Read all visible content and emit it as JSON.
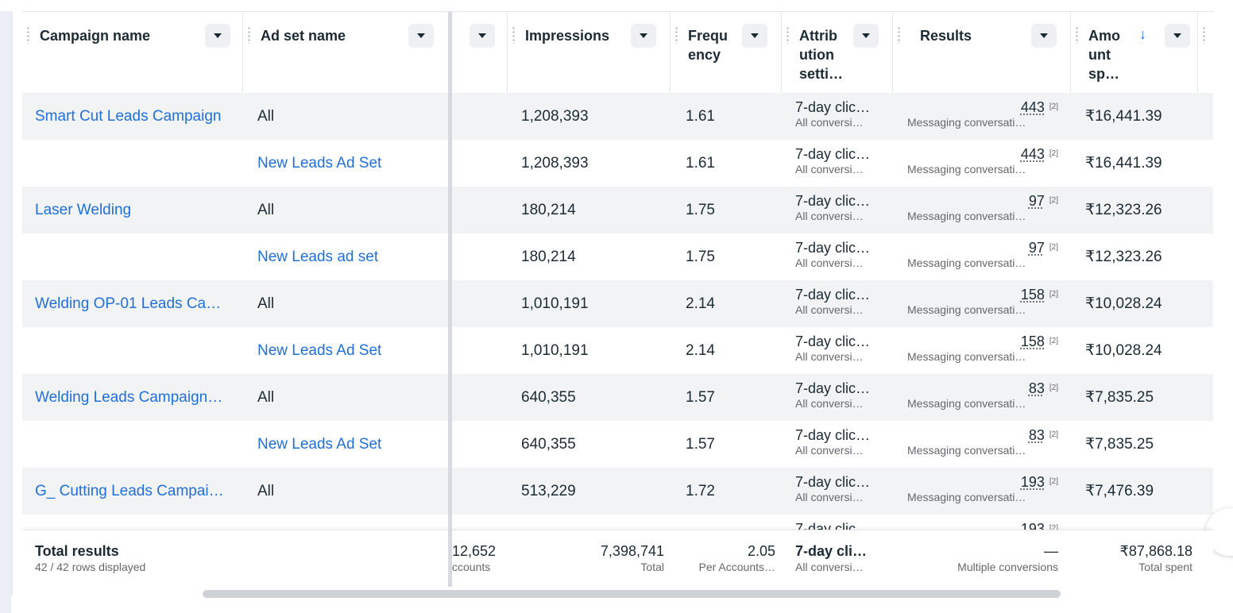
{
  "columns": {
    "campaign_name": "Campaign name",
    "ad_set_name": "Ad set name",
    "impressions": "Impressions",
    "frequency": [
      "Frequ",
      "ency"
    ],
    "attribution": [
      "Attrib",
      "ution",
      "setti…"
    ],
    "results": "Results",
    "amount_spent": [
      "Amo",
      "unt",
      "sp…"
    ],
    "sort_arrow": "↓"
  },
  "rows": [
    {
      "campaign": "Smart Cut Leads Campaign",
      "adset": "All",
      "adset_link": false,
      "impressions": "1,208,393",
      "frequency": "1.61",
      "attr_1": "7-day clic…",
      "attr_2": "All conversi…",
      "results": "443",
      "footnote": "[2]",
      "results_type": "Messaging conversati…",
      "amount": "₹16,441.39"
    },
    {
      "campaign": "",
      "adset": "New Leads Ad Set",
      "adset_link": true,
      "impressions": "1,208,393",
      "frequency": "1.61",
      "attr_1": "7-day clic…",
      "attr_2": "All conversi…",
      "results": "443",
      "footnote": "[2]",
      "results_type": "Messaging conversati…",
      "amount": "₹16,441.39"
    },
    {
      "campaign": "Laser Welding",
      "adset": "All",
      "adset_link": false,
      "impressions": "180,214",
      "frequency": "1.75",
      "attr_1": "7-day clic…",
      "attr_2": "All conversi…",
      "results": "97",
      "footnote": "[2]",
      "results_type": "Messaging conversati…",
      "amount": "₹12,323.26"
    },
    {
      "campaign": "",
      "adset": "New Leads ad set",
      "adset_link": true,
      "impressions": "180,214",
      "frequency": "1.75",
      "attr_1": "7-day clic…",
      "attr_2": "All conversi…",
      "results": "97",
      "footnote": "[2]",
      "results_type": "Messaging conversati…",
      "amount": "₹12,323.26"
    },
    {
      "campaign": "Welding OP-01 Leads Ca…",
      "adset": "All",
      "adset_link": false,
      "impressions": "1,010,191",
      "frequency": "2.14",
      "attr_1": "7-day clic…",
      "attr_2": "All conversi…",
      "results": "158",
      "footnote": "[2]",
      "results_type": "Messaging conversati…",
      "amount": "₹10,028.24"
    },
    {
      "campaign": "",
      "adset": "New Leads Ad Set",
      "adset_link": true,
      "impressions": "1,010,191",
      "frequency": "2.14",
      "attr_1": "7-day clic…",
      "attr_2": "All conversi…",
      "results": "158",
      "footnote": "[2]",
      "results_type": "Messaging conversati…",
      "amount": "₹10,028.24"
    },
    {
      "campaign": "Welding Leads Campaign…",
      "adset": "All",
      "adset_link": false,
      "impressions": "640,355",
      "frequency": "1.57",
      "attr_1": "7-day clic…",
      "attr_2": "All conversi…",
      "results": "83",
      "footnote": "[2]",
      "results_type": "Messaging conversati…",
      "amount": "₹7,835.25"
    },
    {
      "campaign": "",
      "adset": "New Leads Ad Set",
      "adset_link": true,
      "impressions": "640,355",
      "frequency": "1.57",
      "attr_1": "7-day clic…",
      "attr_2": "All conversi…",
      "results": "83",
      "footnote": "[2]",
      "results_type": "Messaging conversati…",
      "amount": "₹7,835.25"
    },
    {
      "campaign": "G_ Cutting Leads Campai…",
      "adset": "All",
      "adset_link": false,
      "impressions": "513,229",
      "frequency": "1.72",
      "attr_1": "7-day clic…",
      "attr_2": "All conversi…",
      "results": "193",
      "footnote": "[2]",
      "results_type": "Messaging conversati…",
      "amount": "₹7,476.39"
    },
    {
      "campaign": "",
      "adset": "",
      "adset_link": true,
      "impressions": "",
      "frequency": "",
      "attr_1": "7-day clic",
      "attr_2": "",
      "results": "193",
      "footnote": "[2]",
      "results_type": "",
      "amount": ""
    }
  ],
  "totals": {
    "label": "Total results",
    "rows_displayed": "42 / 42 rows displayed",
    "reach_value": "12,652",
    "reach_sub": "ccounts",
    "impressions_value": "7,398,741",
    "impressions_sub": "Total",
    "frequency_value": "2.05",
    "frequency_sub": "Per Accounts…",
    "attribution_value": "7-day cli…",
    "attribution_sub": "All conversi…",
    "results_value": "—",
    "results_sub": "Multiple conversions",
    "amount_value": "₹87,868.18",
    "amount_sub": "Total spent"
  },
  "colors": {
    "link": "#216fdb",
    "sort": "#1877f2",
    "row_shade": "#f1f3f5"
  }
}
